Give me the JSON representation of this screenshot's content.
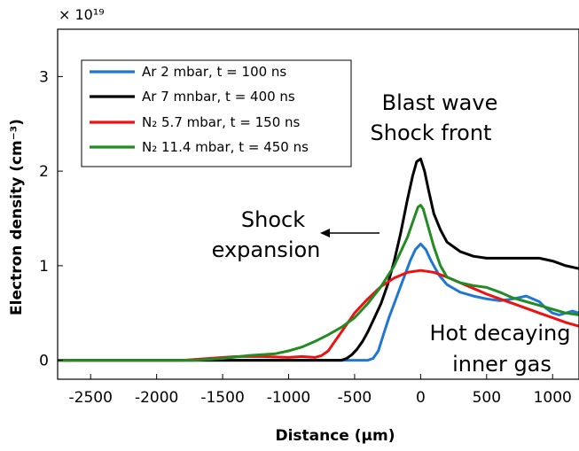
{
  "chart_data": {
    "type": "line",
    "xlabel": "Distance (μm)",
    "ylabel": "Electron density (cm⁻³)",
    "y_multiplier": "× 10¹⁹",
    "xlim": [
      -2750,
      1200
    ],
    "ylim": [
      -0.2,
      3.5
    ],
    "x_ticks": [
      -2500,
      -2000,
      -1500,
      -1000,
      -500,
      0,
      500,
      1000
    ],
    "x_tick_labels": [
      "-2500",
      "-2000",
      "-1500",
      "-1000",
      "-500",
      "0",
      "500",
      "1000"
    ],
    "y_ticks": [
      0,
      1,
      2,
      3
    ],
    "y_tick_labels": [
      "0",
      "1",
      "2",
      "3"
    ],
    "legend_position": "top-left",
    "series": [
      {
        "name": "Ar 2 mbar, t = 100 ns",
        "color": "#1f77d4",
        "x": [
          -2750,
          -400,
          -360,
          -320,
          -280,
          -240,
          -200,
          -160,
          -120,
          -80,
          -40,
          0,
          40,
          80,
          140,
          200,
          300,
          400,
          500,
          600,
          700,
          800,
          900,
          950,
          1000,
          1050,
          1100,
          1150,
          1200
        ],
        "y": [
          0,
          0,
          0.02,
          0.1,
          0.28,
          0.45,
          0.6,
          0.75,
          0.9,
          1.05,
          1.17,
          1.23,
          1.17,
          1.05,
          0.9,
          0.8,
          0.72,
          0.68,
          0.65,
          0.63,
          0.65,
          0.68,
          0.62,
          0.55,
          0.5,
          0.48,
          0.5,
          0.52,
          0.5
        ]
      },
      {
        "name": "Ar 7 mnbar, t = 400 ns",
        "color": "#000000",
        "x": [
          -2750,
          -600,
          -560,
          -520,
          -480,
          -440,
          -400,
          -350,
          -300,
          -250,
          -200,
          -150,
          -100,
          -60,
          -30,
          0,
          30,
          60,
          100,
          150,
          200,
          300,
          400,
          500,
          600,
          700,
          800,
          900,
          1000,
          1100,
          1200
        ],
        "y": [
          0,
          0,
          0.02,
          0.06,
          0.12,
          0.2,
          0.3,
          0.45,
          0.6,
          0.8,
          1.05,
          1.35,
          1.7,
          1.95,
          2.1,
          2.13,
          2.0,
          1.8,
          1.55,
          1.38,
          1.25,
          1.15,
          1.1,
          1.08,
          1.08,
          1.08,
          1.08,
          1.08,
          1.05,
          1.0,
          0.97
        ]
      },
      {
        "name": "N₂ 5.7 mbar, t = 150 ns",
        "color": "#ee1111",
        "x": [
          -2750,
          -1800,
          -1600,
          -1400,
          -1200,
          -1000,
          -900,
          -800,
          -750,
          -700,
          -650,
          -600,
          -550,
          -500,
          -400,
          -300,
          -200,
          -100,
          0,
          100,
          200,
          300,
          400,
          500,
          600,
          700,
          800,
          900,
          1000,
          1100,
          1200
        ],
        "y": [
          0,
          0,
          0.02,
          0.04,
          0.04,
          0.03,
          0.04,
          0.03,
          0.05,
          0.1,
          0.2,
          0.3,
          0.4,
          0.5,
          0.65,
          0.78,
          0.87,
          0.93,
          0.95,
          0.93,
          0.88,
          0.82,
          0.76,
          0.7,
          0.65,
          0.6,
          0.55,
          0.5,
          0.45,
          0.4,
          0.36
        ]
      },
      {
        "name": "N₂ 11.4 mbar, t = 450 ns",
        "color": "#228b22",
        "x": [
          -2750,
          -1700,
          -1500,
          -1300,
          -1100,
          -1000,
          -900,
          -800,
          -700,
          -600,
          -500,
          -400,
          -300,
          -200,
          -100,
          -50,
          -20,
          0,
          20,
          50,
          100,
          150,
          200,
          300,
          400,
          500,
          600,
          700,
          800,
          900,
          1000,
          1100,
          1200
        ],
        "y": [
          0,
          0,
          0.02,
          0.05,
          0.07,
          0.1,
          0.14,
          0.2,
          0.27,
          0.35,
          0.45,
          0.6,
          0.78,
          1.0,
          1.3,
          1.5,
          1.62,
          1.64,
          1.6,
          1.45,
          1.2,
          1.0,
          0.88,
          0.82,
          0.79,
          0.77,
          0.72,
          0.66,
          0.62,
          0.58,
          0.54,
          0.5,
          0.48
        ]
      }
    ],
    "annotations": [
      {
        "id": "blast",
        "lines": [
          "Blast wave",
          "Shock front"
        ]
      },
      {
        "id": "shock",
        "lines": [
          "Shock",
          "expansion"
        ]
      },
      {
        "id": "hot",
        "lines": [
          "Hot decaying",
          "inner gas"
        ]
      }
    ]
  }
}
